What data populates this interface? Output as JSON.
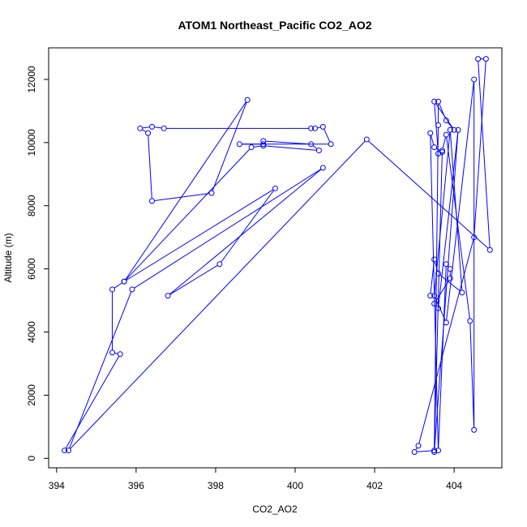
{
  "chart_data": {
    "type": "line",
    "title": "ATOM1 Northeast_Pacific CO2_AO2",
    "xlabel": "CO2_AO2",
    "ylabel": "Altitude (m)",
    "xlim": [
      393.8,
      405.2
    ],
    "ylim": [
      -300,
      13000
    ],
    "xticks": [
      394,
      396,
      398,
      400,
      402,
      404
    ],
    "yticks": [
      0,
      2000,
      4000,
      6000,
      8000,
      10000,
      12000
    ],
    "x_tick_labels": [
      "394",
      "396",
      "398",
      "400",
      "402",
      "404"
    ],
    "y_tick_labels": [
      "0",
      "2000",
      "4000",
      "6000",
      "8000",
      "10000",
      "12000"
    ],
    "grid": false,
    "series": [
      {
        "color": "#0000ff",
        "marker": "open-circle",
        "x": [
          394.2,
          395.6,
          395.4,
          395.4,
          395.7,
          398.8,
          397.9,
          396.4,
          396.3,
          396.1,
          396.4,
          396.7,
          400.4,
          400.5,
          400.7,
          400.9,
          398.6,
          399.2,
          399.2,
          400.4,
          400.6,
          399.2,
          398.9,
          395.7,
          399.5,
          398.1,
          396.8,
          400.7,
          395.9,
          394.3,
          401.8,
          404.9,
          404.6,
          404.8,
          404.5,
          403.1,
          403.0,
          403.5,
          403.6,
          403.6,
          403.8,
          404.0,
          403.5,
          403.6,
          403.7,
          403.5,
          403.4,
          403.6,
          403.8,
          403.9,
          403.9,
          403.5,
          403.6,
          404.1,
          403.5,
          403.7,
          403.8,
          404.4,
          404.5,
          404.5,
          403.8,
          403.5,
          403.9,
          404.2,
          403.6,
          403.5,
          403.4
        ],
        "y": [
          250,
          3300,
          3350,
          5350,
          5600,
          11350,
          8400,
          8150,
          10300,
          10450,
          10500,
          10450,
          10450,
          10450,
          10500,
          9950,
          9950,
          9950,
          10050,
          9950,
          9750,
          9900,
          9850,
          5600,
          8550,
          6150,
          5150,
          9200,
          5350,
          250,
          10100,
          6600,
          12650,
          12650,
          7000,
          400,
          200,
          250,
          10550,
          11300,
          10700,
          10400,
          11300,
          9650,
          9700,
          9850,
          10300,
          250,
          6150,
          6000,
          5700,
          4900,
          4750,
          10400,
          200,
          9750,
          10250,
          4350,
          900,
          12000,
          4300,
          5150,
          10400,
          5250,
          5850,
          6300,
          5150
        ]
      }
    ]
  }
}
